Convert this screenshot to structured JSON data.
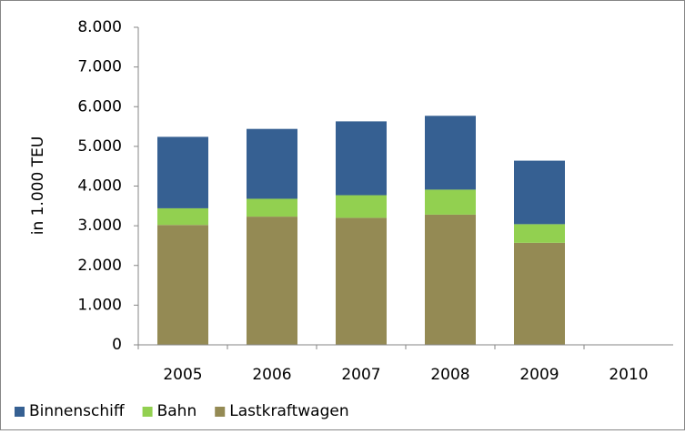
{
  "chart_data": {
    "type": "stacked-bar",
    "y_label": "in 1.000 TEU",
    "categories": [
      "2005",
      "2006",
      "2007",
      "2008",
      "2009",
      "2010"
    ],
    "series": [
      {
        "name": "Lastkraftwagen",
        "color": "#948a54",
        "values": [
          3020,
          3230,
          3200,
          3280,
          2570,
          null
        ]
      },
      {
        "name": "Bahn",
        "color": "#92d050",
        "values": [
          420,
          450,
          570,
          630,
          470,
          null
        ]
      },
      {
        "name": "Binnenschiff",
        "color": "#366092",
        "values": [
          1800,
          1760,
          1860,
          1860,
          1600,
          null
        ]
      }
    ],
    "legend_order": [
      2,
      1,
      0
    ],
    "ylim": [
      0,
      8000
    ],
    "yticks": [
      0,
      {
        "value": 1000,
        "label": "1.000"
      },
      {
        "value": 2000,
        "label": "2.000"
      },
      {
        "value": 3000,
        "label": "3.000"
      },
      {
        "value": 4000,
        "label": "4.000"
      },
      {
        "value": 5000,
        "label": "5.000"
      },
      {
        "value": 6000,
        "label": "6.000"
      },
      {
        "value": 7000,
        "label": "7.000"
      },
      {
        "value": 8000,
        "label": "8.000"
      }
    ],
    "grid": false,
    "legend": "bottom"
  }
}
